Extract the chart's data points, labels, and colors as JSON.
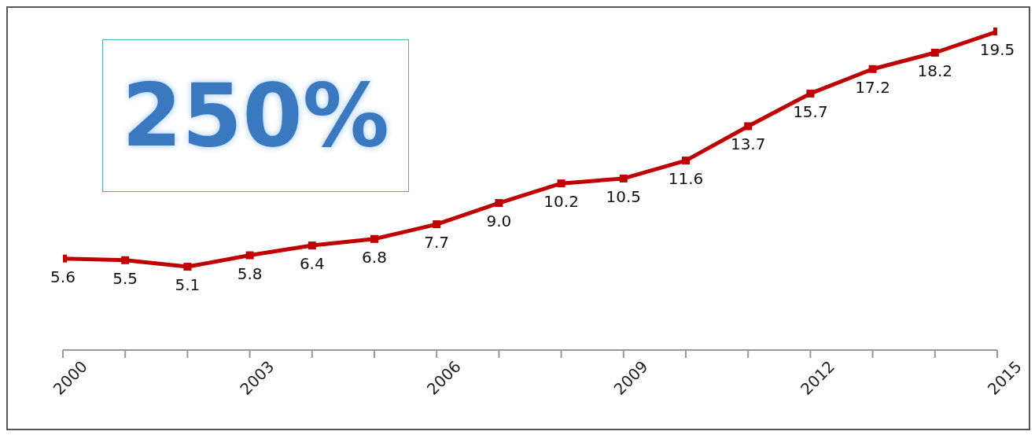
{
  "chart_data": {
    "type": "line",
    "x": [
      2000,
      2001,
      2002,
      2003,
      2004,
      2005,
      2006,
      2007,
      2008,
      2009,
      2010,
      2011,
      2012,
      2013,
      2014,
      2015
    ],
    "series": [
      {
        "color": "#c00000",
        "values": [
          5.6,
          5.5,
          5.1,
          5.8,
          6.4,
          6.8,
          7.7,
          9.0,
          10.2,
          10.5,
          11.6,
          13.7,
          15.7,
          17.2,
          18.2,
          19.5
        ],
        "value_labels": [
          "5.6",
          "5.5",
          "5.1",
          "5.8",
          "6.4",
          "6.8",
          "7.7",
          "9.0",
          "10.2",
          "10.5",
          "11.6",
          "13.7",
          "15.7",
          "17.2",
          "18.2",
          "19.5"
        ]
      }
    ],
    "xlim": [
      2000,
      2015
    ],
    "xticks": [
      2000,
      {
        "value": 2001,
        "label": null
      },
      {
        "value": 2002,
        "label": null
      },
      2003,
      {
        "value": 2004,
        "label": null
      },
      {
        "value": 2005,
        "label": null
      },
      2006,
      {
        "value": 2007,
        "label": null
      },
      {
        "value": 2008,
        "label": null
      },
      2009,
      {
        "value": 2010,
        "label": null
      },
      {
        "value": 2011,
        "label": null
      },
      2012,
      {
        "value": 2013,
        "label": null
      },
      {
        "value": 2014,
        "label": null
      },
      2015
    ],
    "tick_labels": "x",
    "marker": "square",
    "line_style": "solid",
    "annotations": [
      "250%"
    ]
  }
}
